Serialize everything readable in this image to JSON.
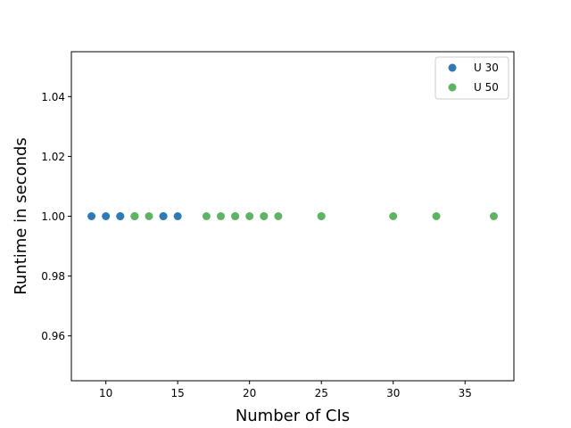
{
  "chart_data": {
    "type": "scatter",
    "title": "",
    "xlabel": "Number of CIs",
    "ylabel": "Runtime in seconds",
    "xlim": [
      7.6,
      38.4
    ],
    "ylim": [
      0.945,
      1.055
    ],
    "xticks": [
      10,
      15,
      20,
      25,
      30,
      35
    ],
    "xtick_labels": [
      "10",
      "15",
      "20",
      "25",
      "30",
      "35"
    ],
    "yticks": [
      0.96,
      0.98,
      1.0,
      1.02,
      1.04
    ],
    "ytick_labels": [
      "0.96",
      "0.98",
      "1.00",
      "1.02",
      "1.04"
    ],
    "grid": false,
    "legend_position": "top-right",
    "series": [
      {
        "name": "U 30",
        "color": "#2f7ab5",
        "points": [
          [
            9,
            1.0
          ],
          [
            10,
            1.0
          ],
          [
            11,
            1.0
          ],
          [
            11,
            1.0
          ],
          [
            12,
            1.0
          ],
          [
            14,
            1.0
          ],
          [
            14,
            1.0
          ],
          [
            15,
            1.0
          ]
        ]
      },
      {
        "name": "U 50",
        "color": "#5fb464",
        "points": [
          [
            12,
            1.0
          ],
          [
            12,
            1.0
          ],
          [
            13,
            1.0
          ],
          [
            17,
            1.0
          ],
          [
            18,
            1.0
          ],
          [
            19,
            1.0
          ],
          [
            19,
            1.0
          ],
          [
            20,
            1.0
          ],
          [
            21,
            1.0
          ],
          [
            21,
            1.0
          ],
          [
            22,
            1.0
          ],
          [
            25,
            1.0
          ],
          [
            25,
            1.0
          ],
          [
            30,
            1.0
          ],
          [
            33,
            1.0
          ],
          [
            37,
            1.0
          ]
        ]
      }
    ]
  }
}
